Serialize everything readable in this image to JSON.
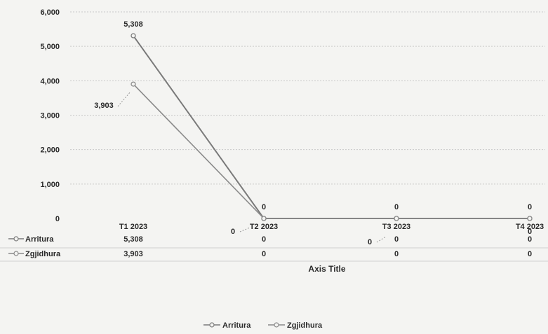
{
  "chart_data": {
    "type": "line",
    "categories": [
      "T1 2023",
      "T2 2023",
      "T3 2023",
      "T4 2023"
    ],
    "series": [
      {
        "name": "Arritura",
        "values": [
          5308,
          0,
          0,
          0
        ],
        "labels": [
          "5,308",
          "0",
          "0",
          "0"
        ],
        "color": "#7a7a7a"
      },
      {
        "name": "Zgjidhura",
        "values": [
          3903,
          0,
          0,
          0
        ],
        "labels": [
          "3,903",
          "0",
          "0",
          "0"
        ],
        "color": "#8a8a8a"
      }
    ],
    "y_ticks": [
      "0",
      "1,000",
      "2,000",
      "3,000",
      "4,000",
      "5,000",
      "6,000"
    ],
    "ylim": [
      0,
      6000
    ],
    "xlabel": "Axis Title",
    "grid": true,
    "legend_position": "bottom",
    "data_table": true
  }
}
